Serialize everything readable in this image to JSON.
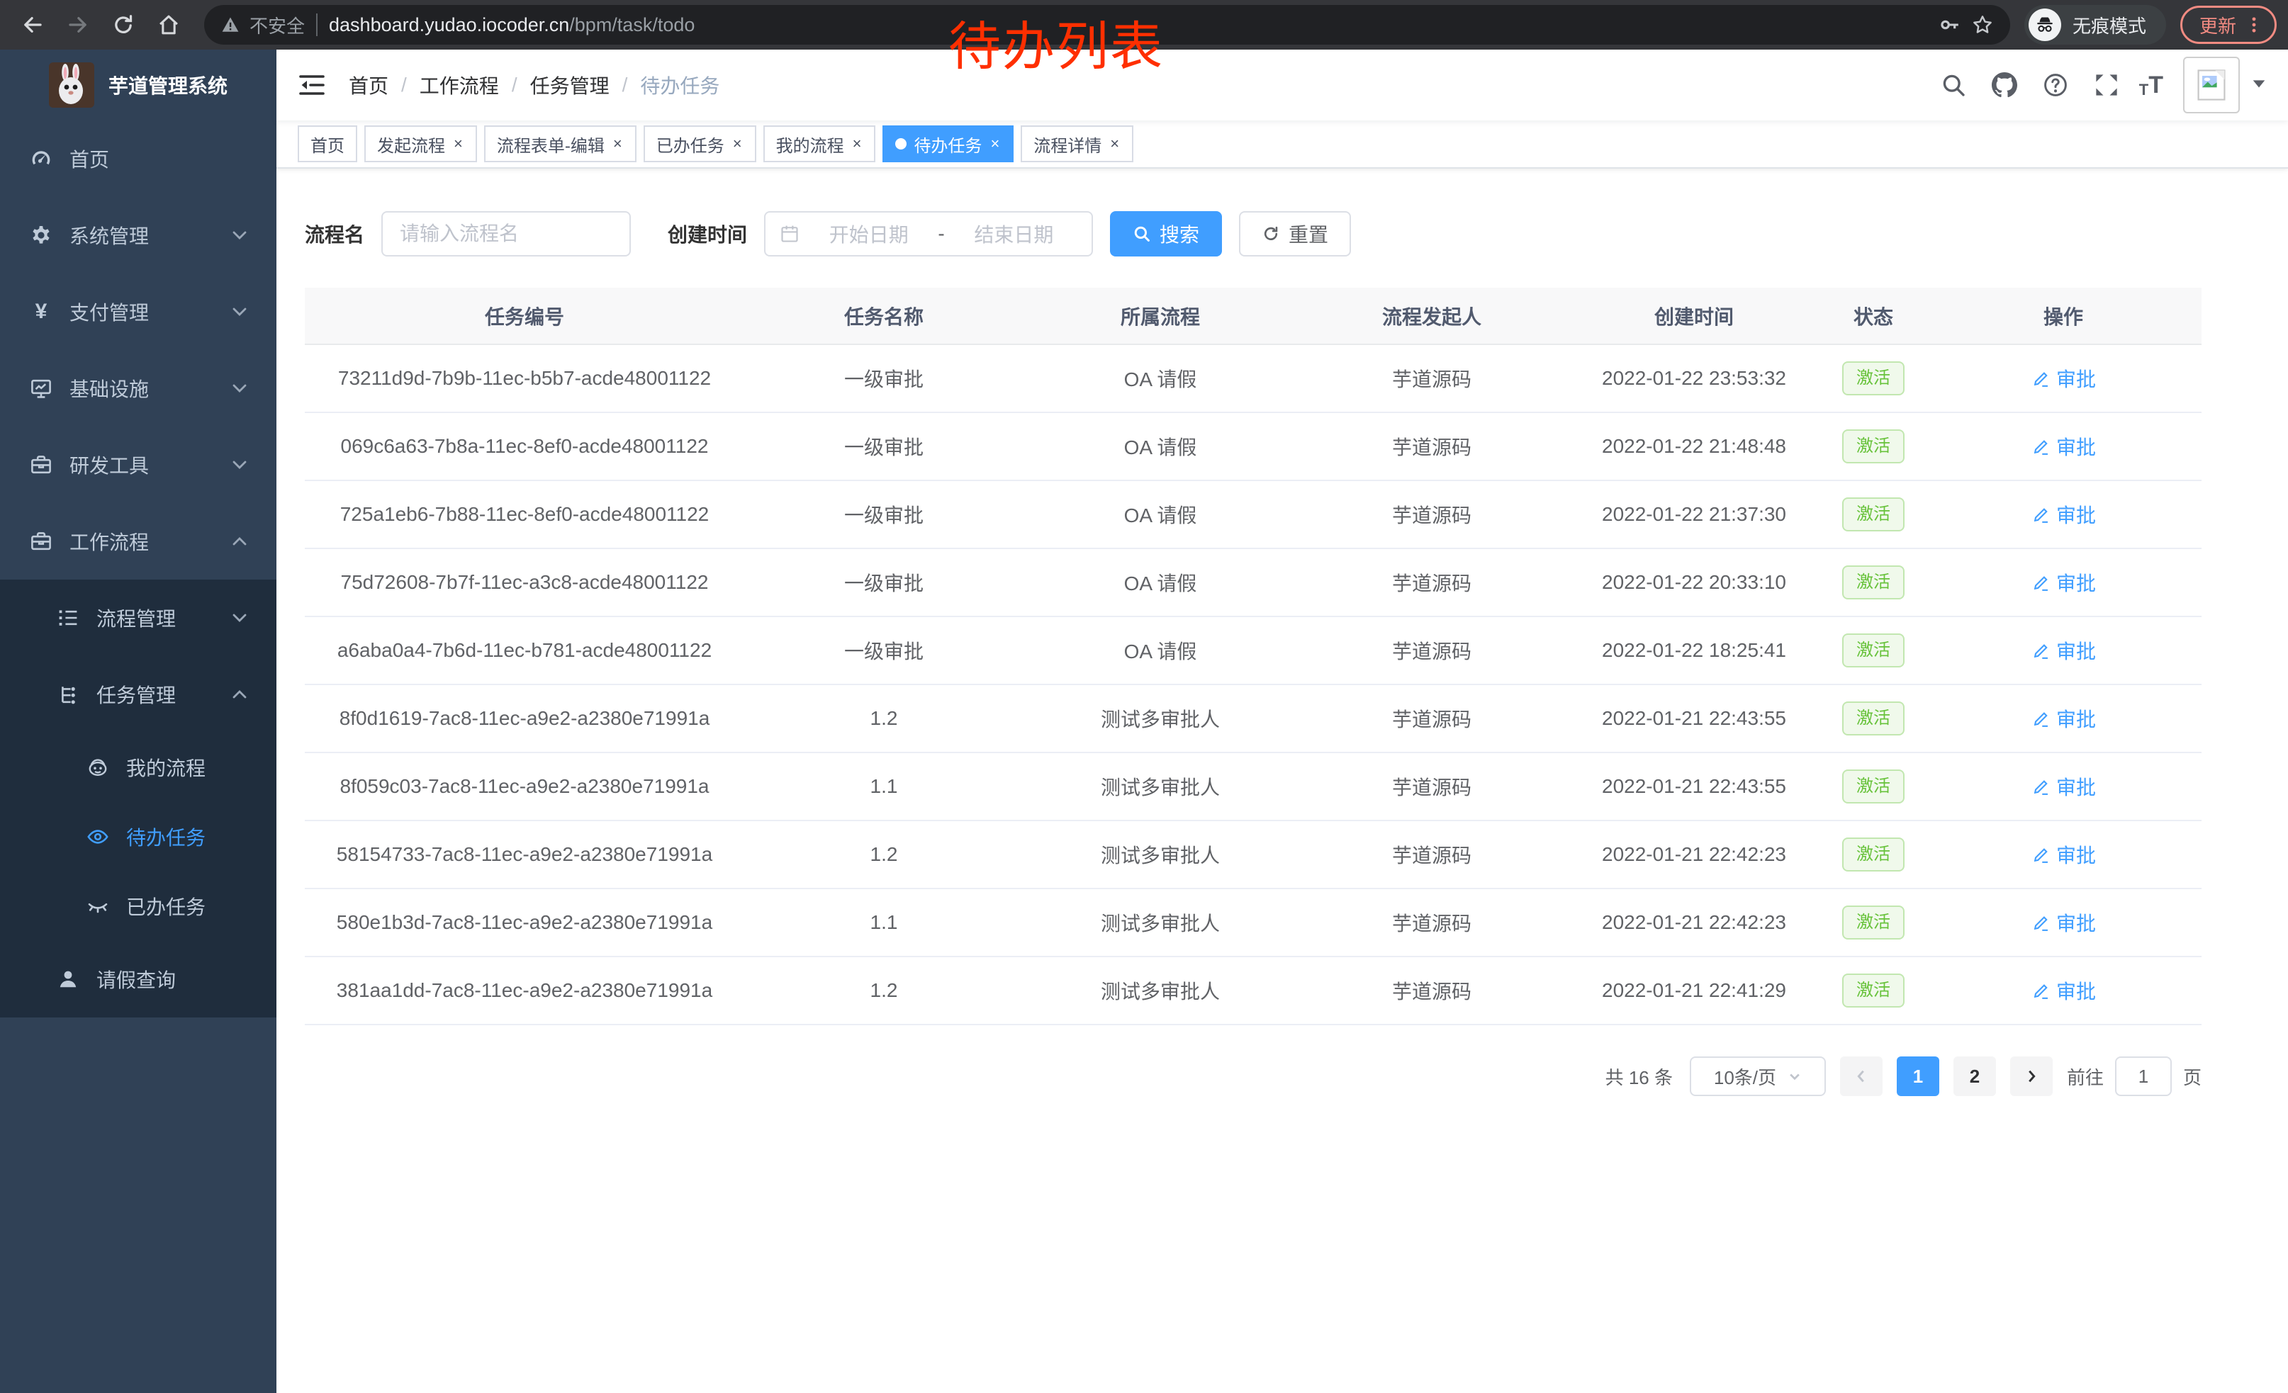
{
  "browser": {
    "security_label": "不安全",
    "url_host": "dashboard.yudao.iocoder.cn",
    "url_path": "/bpm/task/todo",
    "incognito_label": "无痕模式",
    "update_label": "更新"
  },
  "annotation": {
    "text": "待办列表",
    "color": "#ff2f00"
  },
  "sidebar": {
    "title": "芋道管理系统",
    "menu": [
      {
        "icon": "gauge-icon",
        "label": "首页",
        "level": 1,
        "arrow": null,
        "sub": false,
        "active": false
      },
      {
        "icon": "gear-icon",
        "label": "系统管理",
        "level": 1,
        "arrow": "down",
        "sub": false,
        "active": false
      },
      {
        "icon": "yen-icon",
        "label": "支付管理",
        "level": 1,
        "arrow": "down",
        "sub": false,
        "active": false
      },
      {
        "icon": "monitor-icon",
        "label": "基础设施",
        "level": 1,
        "arrow": "down",
        "sub": false,
        "active": false
      },
      {
        "icon": "toolbox-icon",
        "label": "研发工具",
        "level": 1,
        "arrow": "down",
        "sub": false,
        "active": false
      },
      {
        "icon": "briefcase-icon",
        "label": "工作流程",
        "level": 1,
        "arrow": "up",
        "sub": false,
        "active": false
      },
      {
        "icon": "listtree-icon",
        "label": "流程管理",
        "level": 2,
        "arrow": "down",
        "sub": true,
        "active": false
      },
      {
        "icon": "orgtree-icon",
        "label": "任务管理",
        "level": 2,
        "arrow": "up",
        "sub": true,
        "active": false
      },
      {
        "icon": "face-icon",
        "label": "我的流程",
        "level": 3,
        "arrow": null,
        "sub": true,
        "active": false
      },
      {
        "icon": "eye-icon",
        "label": "待办任务",
        "level": 3,
        "arrow": null,
        "sub": true,
        "active": true
      },
      {
        "icon": "eyeclosed-icon",
        "label": "已办任务",
        "level": 3,
        "arrow": null,
        "sub": true,
        "active": false
      },
      {
        "icon": "user-icon",
        "label": "请假查询",
        "level": 2,
        "arrow": null,
        "sub": true,
        "active": false
      }
    ]
  },
  "breadcrumb": [
    "首页",
    "工作流程",
    "任务管理",
    "待办任务"
  ],
  "tabs": [
    {
      "label": "首页",
      "closable": false,
      "active": false
    },
    {
      "label": "发起流程",
      "closable": true,
      "active": false
    },
    {
      "label": "流程表单-编辑",
      "closable": true,
      "active": false
    },
    {
      "label": "已办任务",
      "closable": true,
      "active": false
    },
    {
      "label": "我的流程",
      "closable": true,
      "active": false
    },
    {
      "label": "待办任务",
      "closable": true,
      "active": true
    },
    {
      "label": "流程详情",
      "closable": true,
      "active": false
    }
  ],
  "filters": {
    "name_label": "流程名",
    "name_placeholder": "请输入流程名",
    "time_label": "创建时间",
    "start_placeholder": "开始日期",
    "range_separator": "-",
    "end_placeholder": "结束日期",
    "search_label": "搜索",
    "reset_label": "重置"
  },
  "table": {
    "columns": [
      "任务编号",
      "任务名称",
      "所属流程",
      "流程发起人",
      "创建时间",
      "状态",
      "操作"
    ],
    "status_label": "激活",
    "action_label": "审批",
    "rows": [
      {
        "id": "73211d9d-7b9b-11ec-b5b7-acde48001122",
        "name": "一级审批",
        "process": "OA 请假",
        "starter": "芋道源码",
        "time": "2022-01-22 23:53:32",
        "status": "激活",
        "action": "审批"
      },
      {
        "id": "069c6a63-7b8a-11ec-8ef0-acde48001122",
        "name": "一级审批",
        "process": "OA 请假",
        "starter": "芋道源码",
        "time": "2022-01-22 21:48:48",
        "status": "激活",
        "action": "审批"
      },
      {
        "id": "725a1eb6-7b88-11ec-8ef0-acde48001122",
        "name": "一级审批",
        "process": "OA 请假",
        "starter": "芋道源码",
        "time": "2022-01-22 21:37:30",
        "status": "激活",
        "action": "审批"
      },
      {
        "id": "75d72608-7b7f-11ec-a3c8-acde48001122",
        "name": "一级审批",
        "process": "OA 请假",
        "starter": "芋道源码",
        "time": "2022-01-22 20:33:10",
        "status": "激活",
        "action": "审批"
      },
      {
        "id": "a6aba0a4-7b6d-11ec-b781-acde48001122",
        "name": "一级审批",
        "process": "OA 请假",
        "starter": "芋道源码",
        "time": "2022-01-22 18:25:41",
        "status": "激活",
        "action": "审批"
      },
      {
        "id": "8f0d1619-7ac8-11ec-a9e2-a2380e71991a",
        "name": "1.2",
        "process": "测试多审批人",
        "starter": "芋道源码",
        "time": "2022-01-21 22:43:55",
        "status": "激活",
        "action": "审批"
      },
      {
        "id": "8f059c03-7ac8-11ec-a9e2-a2380e71991a",
        "name": "1.1",
        "process": "测试多审批人",
        "starter": "芋道源码",
        "time": "2022-01-21 22:43:55",
        "status": "激活",
        "action": "审批"
      },
      {
        "id": "58154733-7ac8-11ec-a9e2-a2380e71991a",
        "name": "1.2",
        "process": "测试多审批人",
        "starter": "芋道源码",
        "time": "2022-01-21 22:42:23",
        "status": "激活",
        "action": "审批"
      },
      {
        "id": "580e1b3d-7ac8-11ec-a9e2-a2380e71991a",
        "name": "1.1",
        "process": "测试多审批人",
        "starter": "芋道源码",
        "time": "2022-01-21 22:42:23",
        "status": "激活",
        "action": "审批"
      },
      {
        "id": "381aa1dd-7ac8-11ec-a9e2-a2380e71991a",
        "name": "1.2",
        "process": "测试多审批人",
        "starter": "芋道源码",
        "time": "2022-01-21 22:41:29",
        "status": "激活",
        "action": "审批"
      }
    ]
  },
  "pagination": {
    "total_label": "共 16 条",
    "page_size_label": "10条/页",
    "pages": [
      "1",
      "2"
    ],
    "active_page": "1",
    "goto_label": "前往",
    "goto_value": "1",
    "page_unit_label": "页"
  },
  "colors": {
    "accent": "#409eff",
    "sidebar_bg": "#304156",
    "submenu_bg": "#1f2d3d",
    "success_text": "#67c23a",
    "annotation_red": "#ff2f00",
    "update_chip": "#f28b82"
  }
}
